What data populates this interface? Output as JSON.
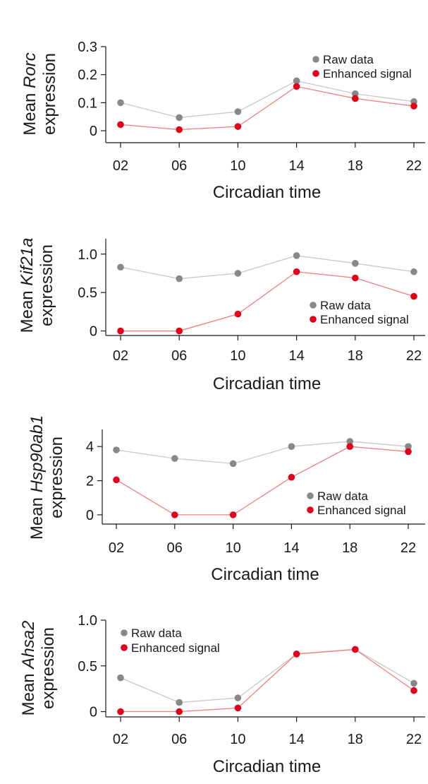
{
  "colors": {
    "raw": "#888888",
    "raw_line": "#c8c8c8",
    "enhanced": "#e3001b",
    "enhanced_line": "#f07f7a"
  },
  "chart_data": [
    {
      "type": "line",
      "categories": [
        "02",
        "06",
        "10",
        "14",
        "18",
        "22"
      ],
      "xlabel": "Circadian time",
      "ylabel_prefix": "Mean ",
      "ylabel_gene": "Rorc",
      "ylabel_suffix": "expression",
      "ylim": [
        -0.04,
        0.3
      ],
      "yticks": [
        0,
        0.1,
        0.2,
        0.3
      ],
      "ytick_labels": [
        "0",
        "0.1",
        "0.2",
        "0.3"
      ],
      "legend": "top-right",
      "series": [
        {
          "name": "Raw data",
          "values": [
            0.1,
            0.047,
            0.068,
            0.178,
            0.132,
            0.104
          ]
        },
        {
          "name": "Enhanced signal",
          "values": [
            0.022,
            0.004,
            0.015,
            0.158,
            0.115,
            0.088
          ]
        }
      ]
    },
    {
      "type": "line",
      "categories": [
        "02",
        "06",
        "10",
        "14",
        "18",
        "22"
      ],
      "xlabel": "Circadian time",
      "ylabel_prefix": "Mean ",
      "ylabel_gene": "Kif21a",
      "ylabel_suffix": "expression",
      "ylim": [
        -0.05,
        1.2
      ],
      "yticks": [
        0,
        0.5,
        1.0
      ],
      "ytick_labels": [
        "0",
        "0.5",
        "1.0"
      ],
      "legend": "bottom-right",
      "series": [
        {
          "name": "Raw data",
          "values": [
            0.83,
            0.68,
            0.75,
            0.98,
            0.88,
            0.77
          ]
        },
        {
          "name": "Enhanced signal",
          "values": [
            0.0,
            0.0,
            0.22,
            0.77,
            0.69,
            0.45
          ]
        }
      ]
    },
    {
      "type": "line",
      "categories": [
        "02",
        "06",
        "10",
        "14",
        "18",
        "22"
      ],
      "xlabel": "Circadian time",
      "ylabel_prefix": "Mean ",
      "ylabel_gene": "Hsp90ab1",
      "ylabel_suffix": "expression",
      "ylim": [
        -0.5,
        5
      ],
      "yticks": [
        0,
        2,
        4
      ],
      "ytick_labels": [
        "0",
        "2",
        "4"
      ],
      "legend": "bottom-right",
      "series": [
        {
          "name": "Raw data",
          "values": [
            3.8,
            3.3,
            3.0,
            4.0,
            4.3,
            4.0
          ]
        },
        {
          "name": "Enhanced signal",
          "values": [
            2.05,
            0.0,
            0.0,
            2.2,
            4.0,
            3.7
          ]
        }
      ]
    },
    {
      "type": "line",
      "categories": [
        "02",
        "06",
        "10",
        "14",
        "18",
        "22"
      ],
      "xlabel": "Circadian time",
      "ylabel_prefix": "Mean ",
      "ylabel_gene": "Ahsa2",
      "ylabel_suffix": "expression",
      "ylim": [
        -0.05,
        1.0
      ],
      "yticks": [
        0,
        0.5,
        1.0
      ],
      "ytick_labels": [
        "0",
        "0.5",
        "1.0"
      ],
      "legend": "top-left",
      "series": [
        {
          "name": "Raw data",
          "values": [
            0.37,
            0.1,
            0.15,
            0.63,
            0.68,
            0.31
          ]
        },
        {
          "name": "Enhanced signal",
          "values": [
            0.0,
            0.0,
            0.04,
            0.63,
            0.68,
            0.23
          ]
        }
      ]
    }
  ]
}
